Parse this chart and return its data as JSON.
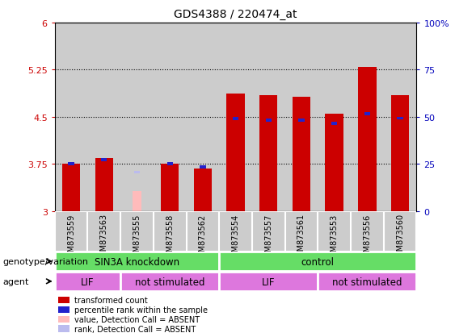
{
  "title": "GDS4388 / 220474_at",
  "samples": [
    "GSM873559",
    "GSM873563",
    "GSM873555",
    "GSM873558",
    "GSM873562",
    "GSM873554",
    "GSM873557",
    "GSM873561",
    "GSM873553",
    "GSM873556",
    "GSM873560"
  ],
  "red_values": [
    3.76,
    3.84,
    null,
    3.76,
    3.68,
    4.87,
    4.85,
    4.82,
    4.55,
    5.3,
    4.85
  ],
  "blue_values": [
    3.76,
    3.82,
    null,
    3.76,
    3.7,
    4.47,
    4.45,
    4.45,
    4.4,
    4.55,
    4.48
  ],
  "pink_value": 3.32,
  "pink_index": 2,
  "lavender_value": 3.62,
  "lavender_index": 2,
  "ymin": 3.0,
  "ymax": 6.0,
  "yticks": [
    3.0,
    3.75,
    4.5,
    5.25,
    6.0
  ],
  "ytick_labels": [
    "3",
    "3.75",
    "4.5",
    "5.25",
    "6"
  ],
  "right_ytick_labels": [
    "0",
    "25",
    "50",
    "75",
    "100%"
  ],
  "gridlines": [
    3.75,
    4.5,
    5.25
  ],
  "bar_color": "#cc0000",
  "blue_color": "#2222cc",
  "pink_color": "#ffbbbb",
  "lavender_color": "#bbbbee",
  "col_bg_color": "#cccccc",
  "plot_bg_color": "#ffffff",
  "bar_width": 0.55,
  "blue_bar_width": 0.18,
  "pink_bar_width": 0.28,
  "legend_items": [
    {
      "label": "transformed count",
      "color": "#cc0000"
    },
    {
      "label": "percentile rank within the sample",
      "color": "#2222cc"
    },
    {
      "label": "value, Detection Call = ABSENT",
      "color": "#ffbbbb"
    },
    {
      "label": "rank, Detection Call = ABSENT",
      "color": "#bbbbee"
    }
  ],
  "left_label_color": "#cc0000",
  "right_label_color": "#0000bb",
  "group_label_genotype": "genotype/variation",
  "group_label_agent": "agent",
  "geno_groups": [
    {
      "label": "SIN3A knockdown",
      "start": 0,
      "end": 5
    },
    {
      "label": "control",
      "start": 5,
      "end": 11
    }
  ],
  "agent_groups": [
    {
      "label": "LIF",
      "start": 0,
      "end": 2
    },
    {
      "label": "not stimulated",
      "start": 2,
      "end": 5
    },
    {
      "label": "LIF",
      "start": 5,
      "end": 8
    },
    {
      "label": "not stimulated",
      "start": 8,
      "end": 11
    }
  ],
  "green_color": "#66dd66",
  "magenta_color": "#dd77dd"
}
